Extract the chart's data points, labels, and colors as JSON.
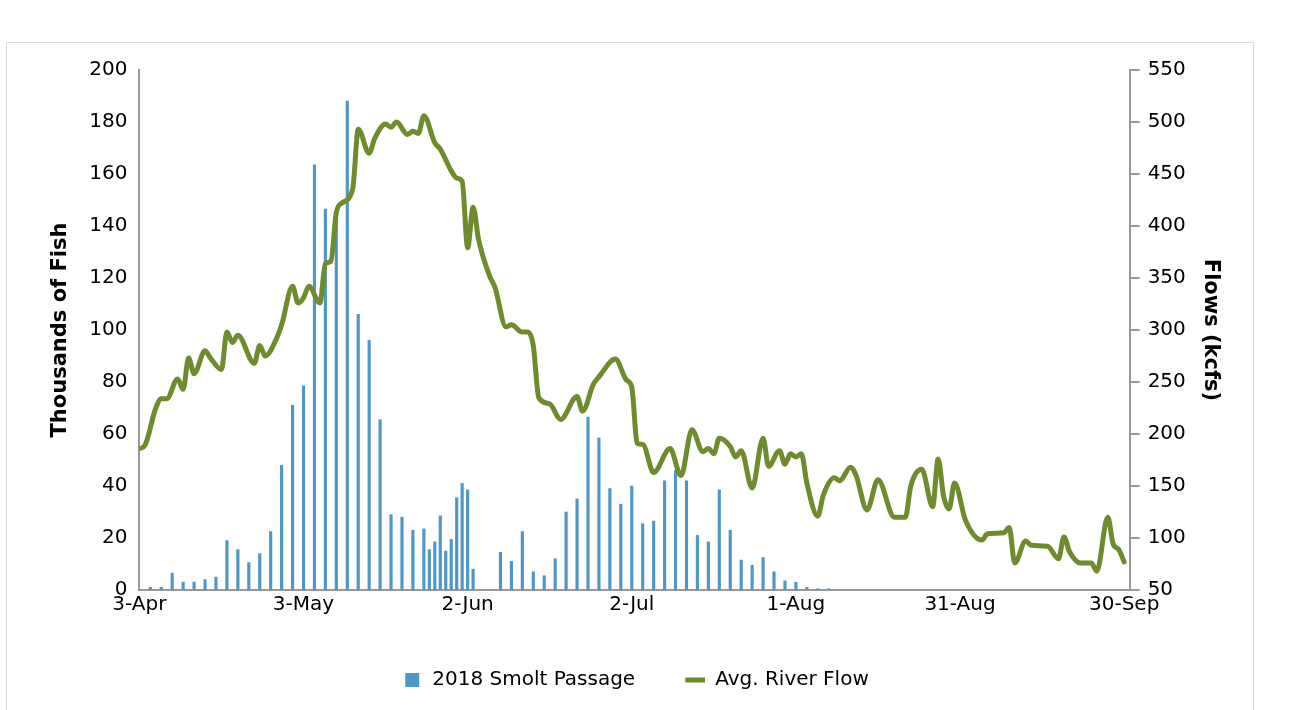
{
  "chart_data": {
    "type": "bar",
    "ylabel": "Thousands of Fish",
    "y2label": "Flows (kcfs)",
    "xlim": [
      "--04-03",
      "--10-01"
    ],
    "xticks": [
      {
        "value": "--04-03",
        "label": "3-Apr"
      },
      {
        "value": "--05-03",
        "label": "3-May"
      },
      {
        "value": "--06-02",
        "label": "2-Jun"
      },
      {
        "value": "--07-02",
        "label": "2-Jul"
      },
      {
        "value": "--08-01",
        "label": "1-Aug"
      },
      {
        "value": "--08-31",
        "label": "31-Aug"
      },
      {
        "value": "--09-30",
        "label": "30-Sep"
      }
    ],
    "ylim": [
      0,
      200
    ],
    "yticks": [
      0,
      20,
      40,
      60,
      80,
      100,
      120,
      140,
      160,
      180,
      200
    ],
    "y2lim": [
      50,
      550
    ],
    "y2ticks": [
      50,
      100,
      150,
      200,
      250,
      300,
      350,
      400,
      450,
      500,
      550
    ],
    "grid": false,
    "legend": "bottom",
    "marker": "none",
    "series": [
      {
        "name": "2018 Smolt Passage",
        "color": "#4f97c5",
        "x": [
          "--04-05",
          "--04-07",
          "--04-09",
          "--04-11",
          "--04-13",
          "--04-15",
          "--04-17",
          "--04-19",
          "--04-21",
          "--04-23",
          "--04-25",
          "--04-27",
          "--04-29",
          "--05-01",
          "--05-03",
          "--05-05",
          "--05-07",
          "--05-09",
          "--05-11",
          "--05-13",
          "--05-15",
          "--05-17",
          "--05-19",
          "--05-21",
          "--05-23",
          "--05-25",
          "--05-26",
          "--05-27",
          "--05-28",
          "--05-29",
          "--05-30",
          "--05-31",
          "--06-01",
          "--06-02",
          "--06-03",
          "--06-08",
          "--06-10",
          "--06-12",
          "--06-14",
          "--06-16",
          "--06-18",
          "--06-20",
          "--06-22",
          "--06-24",
          "--06-26",
          "--06-28",
          "--06-30",
          "--07-02",
          "--07-04",
          "--07-06",
          "--07-08",
          "--07-10",
          "--07-12",
          "--07-14",
          "--07-16",
          "--07-18",
          "--07-20",
          "--07-22",
          "--07-24",
          "--07-26",
          "--07-28",
          "--07-30",
          "--08-01",
          "--08-03",
          "--08-05",
          "--08-07"
        ],
        "values": [
          1,
          1,
          6.5,
          3,
          3,
          4,
          5,
          19,
          15.5,
          10.5,
          14,
          22.5,
          48,
          71,
          78.5,
          163.5,
          146.5,
          144,
          188,
          106,
          96,
          65.5,
          29,
          28,
          23,
          23.5,
          15.5,
          18.5,
          28.5,
          15,
          19.5,
          35.5,
          41,
          38.5,
          8,
          14.5,
          11,
          22.5,
          7,
          5.5,
          12,
          30,
          35,
          66.5,
          58.5,
          39,
          33,
          40,
          25.5,
          26.5,
          42,
          46,
          42,
          21,
          18.5,
          38.5,
          23,
          11.5,
          9.5,
          12.5,
          7,
          3.5,
          3,
          1,
          0.5,
          0.5
        ]
      },
      {
        "name": "Avg. River Flow",
        "type": "line",
        "axis": "y2",
        "color": "#6e8b2e",
        "x": [
          "--04-03",
          "--04-04",
          "--04-06",
          "--04-07",
          "--04-08",
          "--04-10",
          "--04-11",
          "--04-12",
          "--04-13",
          "--04-15",
          "--04-16",
          "--04-18",
          "--04-19",
          "--04-20",
          "--04-21",
          "--04-24",
          "--04-25",
          "--04-26",
          "--04-28",
          "--04-29",
          "--05-01",
          "--05-02",
          "--05-03",
          "--05-04",
          "--05-06",
          "--05-07",
          "--05-08",
          "--05-09",
          "--05-10",
          "--05-12",
          "--05-13",
          "--05-15",
          "--05-16",
          "--05-18",
          "--05-19",
          "--05-20",
          "--05-22",
          "--05-23",
          "--05-24",
          "--05-25",
          "--05-27",
          "--05-28",
          "--05-30",
          "--05-31",
          "--06-01",
          "--06-02",
          "--06-03",
          "--06-04",
          "--06-06",
          "--06-07",
          "--06-09",
          "--06-10",
          "--06-12",
          "--06-13",
          "--06-14",
          "--06-15",
          "--06-17",
          "--06-19",
          "--06-22",
          "--06-23",
          "--06-25",
          "--06-26",
          "--06-29",
          "--07-01",
          "--07-02",
          "--07-03",
          "--07-04",
          "--07-06",
          "--07-09",
          "--07-11",
          "--07-13",
          "--07-15",
          "--07-16",
          "--07-17",
          "--07-18",
          "--07-20",
          "--07-21",
          "--07-22",
          "--07-24",
          "--07-26",
          "--07-27",
          "--07-29",
          "--07-30",
          "--07-31",
          "--08-01",
          "--08-02",
          "--08-03",
          "--08-05",
          "--08-06",
          "--08-08",
          "--08-09",
          "--08-11",
          "--08-12",
          "--08-14",
          "--08-16",
          "--08-19",
          "--08-21",
          "--08-22",
          "--08-24",
          "--08-26",
          "--08-27",
          "--08-28",
          "--08-29",
          "--08-30",
          "--09-01",
          "--09-04",
          "--09-05",
          "--09-08",
          "--09-09",
          "--09-10",
          "--09-12",
          "--09-13",
          "--09-16",
          "--09-18",
          "--09-19",
          "--09-20",
          "--09-22",
          "--09-24",
          "--09-25",
          "--09-27",
          "--09-28",
          "--09-29",
          "--09-30"
        ],
        "values": [
          186,
          189,
          225,
          234,
          234,
          253,
          243,
          273,
          258,
          280,
          273,
          262,
          298,
          288,
          295,
          268,
          285,
          275,
          291,
          305,
          342,
          326,
          331,
          342,
          326,
          364,
          366,
          413,
          422,
          436,
          493,
          470,
          484,
          498,
          495,
          500,
          488,
          491,
          489,
          506,
          480,
          474,
          453,
          446,
          443,
          379,
          418,
          387,
          352,
          341,
          303,
          305,
          298,
          298,
          285,
          235,
          229,
          214,
          236,
          222,
          248,
          255,
          272,
          252,
          245,
          191,
          190,
          163,
          186,
          160,
          204,
          183,
          186,
          181,
          196,
          188,
          178,
          184,
          148,
          196,
          169,
          184,
          171,
          181,
          178,
          181,
          153,
          121,
          141,
          158,
          155,
          168,
          160,
          127,
          156,
          120,
          120,
          150,
          166,
          130,
          176,
          140,
          128,
          153,
          117,
          98,
          104,
          105,
          110,
          76,
          97,
          93,
          92,
          80,
          101,
          87,
          76,
          76,
          68,
          120,
          94,
          89,
          77
        ]
      }
    ]
  }
}
